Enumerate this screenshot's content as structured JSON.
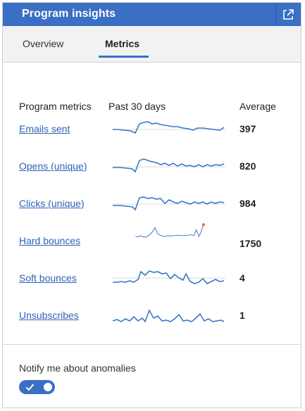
{
  "header": {
    "title": "Program insights"
  },
  "tabs": [
    {
      "label": "Overview",
      "active": false
    },
    {
      "label": "Metrics",
      "active": true
    }
  ],
  "columns": {
    "metric": "Program metrics",
    "trend": "Past 30 days",
    "average": "Average"
  },
  "metrics": [
    {
      "label": "Emails sent",
      "average": "397"
    },
    {
      "label": "Opens (unique)",
      "average": "820"
    },
    {
      "label": "Clicks (unique)",
      "average": "984"
    },
    {
      "label": "Hard bounces",
      "average": "1750"
    },
    {
      "label": "Soft bounces",
      "average": "4"
    },
    {
      "label": "Unsubscribes",
      "average": "1"
    }
  ],
  "notify": {
    "label": "Notify me about anomalies",
    "enabled": true
  },
  "colors": {
    "accent": "#3a6fc4",
    "link": "#2f62b3",
    "sparkline": "#3a78c8",
    "anomaly": "#ff5a4e"
  },
  "icons": {
    "popout": "external-link-icon",
    "toggle_check": "check-icon"
  }
}
